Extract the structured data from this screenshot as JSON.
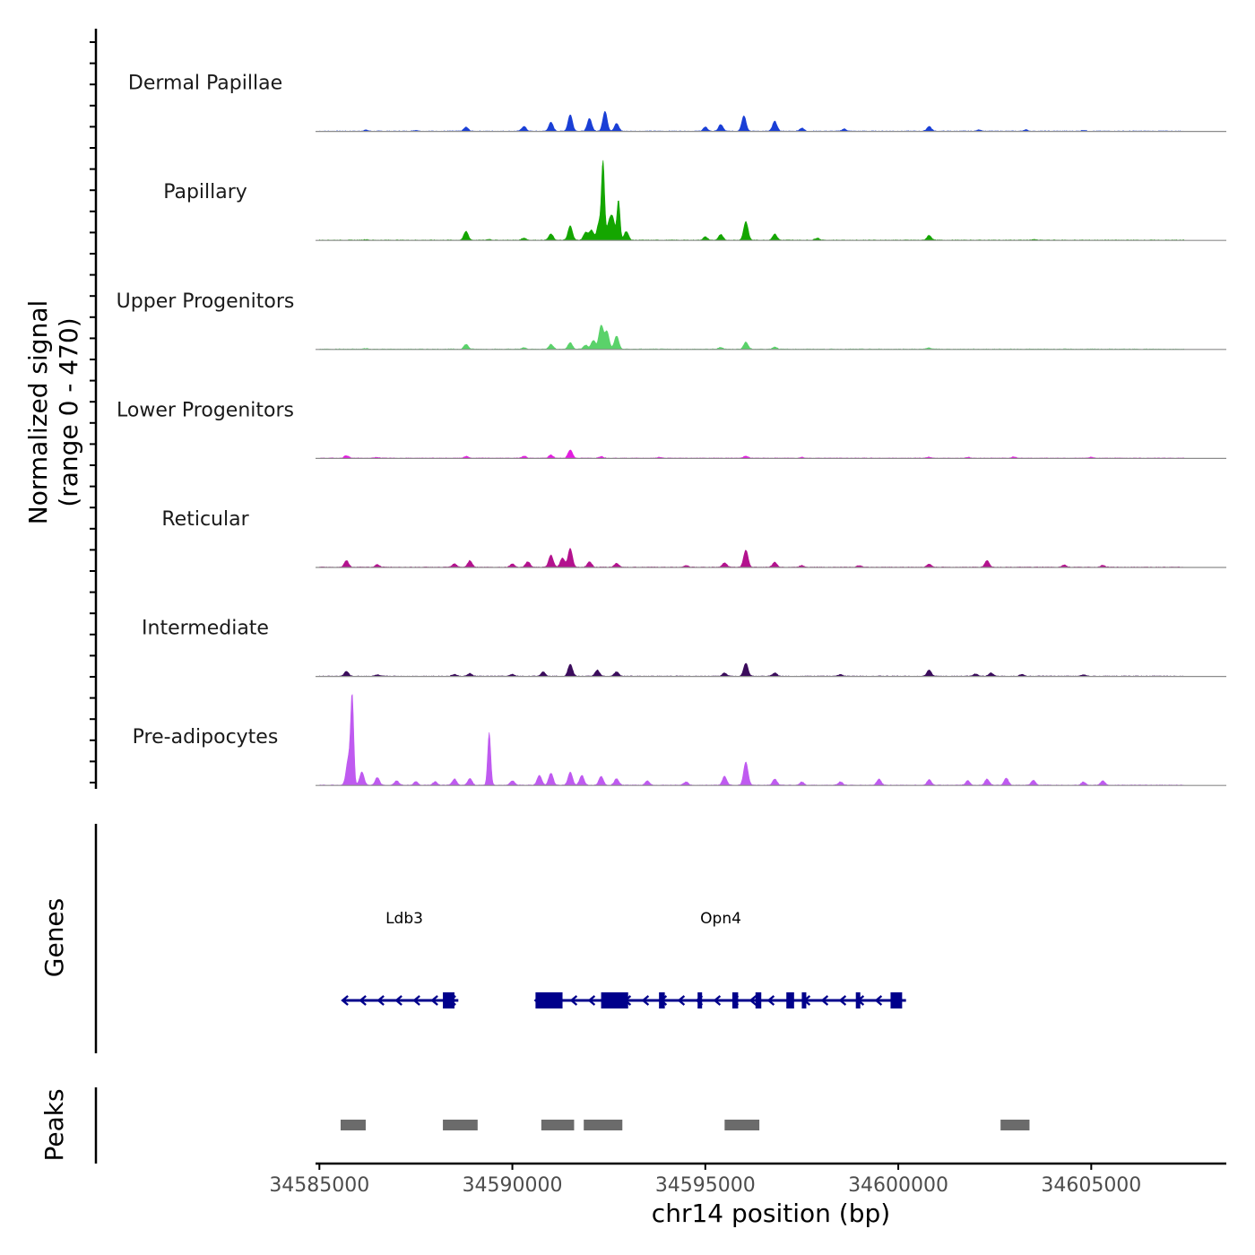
{
  "chart_data": {
    "type": "area",
    "title": "",
    "chromosome": "chr14",
    "xlabel": "chr14 position (bp)",
    "ylabel_line1": "Normalized signal",
    "ylabel_line2": "(range 0 - 470)",
    "signal_range": [
      0,
      470
    ],
    "xlim": [
      34584900,
      34608500
    ],
    "x_ticks": [
      34585000,
      34590000,
      34595000,
      34600000,
      34605000
    ],
    "x_tick_labels": [
      "34585000",
      "34590000",
      "34595000",
      "34600000",
      "34605000"
    ],
    "track_start": 34585000,
    "track_end": 34607400,
    "tracks": [
      {
        "name": "Dermal Papillae",
        "color": "#1a3fd6",
        "peaks": [
          [
            34586200,
            5
          ],
          [
            34587500,
            4
          ],
          [
            34588800,
            18
          ],
          [
            34590300,
            22
          ],
          [
            34591000,
            40
          ],
          [
            34591500,
            75
          ],
          [
            34592000,
            58
          ],
          [
            34592400,
            90
          ],
          [
            34592700,
            35
          ],
          [
            34595000,
            18
          ],
          [
            34595400,
            30
          ],
          [
            34596000,
            70
          ],
          [
            34596800,
            45
          ],
          [
            34597500,
            14
          ],
          [
            34598600,
            10
          ],
          [
            34600800,
            22
          ],
          [
            34602100,
            6
          ],
          [
            34603300,
            6
          ],
          [
            34604800,
            4
          ]
        ]
      },
      {
        "name": "Papillary",
        "color": "#14a600",
        "peaks": [
          [
            34586200,
            3
          ],
          [
            34588800,
            40
          ],
          [
            34589400,
            4
          ],
          [
            34590300,
            10
          ],
          [
            34591000,
            28
          ],
          [
            34591500,
            65
          ],
          [
            34591900,
            35
          ],
          [
            34592050,
            45
          ],
          [
            34592250,
            80
          ],
          [
            34592350,
            345
          ],
          [
            34592500,
            70
          ],
          [
            34592600,
            95
          ],
          [
            34592750,
            180
          ],
          [
            34592950,
            40
          ],
          [
            34595000,
            15
          ],
          [
            34595400,
            25
          ],
          [
            34596050,
            85
          ],
          [
            34596800,
            28
          ],
          [
            34597900,
            10
          ],
          [
            34600800,
            22
          ],
          [
            34603500,
            3
          ]
        ]
      },
      {
        "name": "Upper Progenitors",
        "color": "#5ad26a",
        "peaks": [
          [
            34586200,
            3
          ],
          [
            34588800,
            22
          ],
          [
            34590300,
            6
          ],
          [
            34591000,
            22
          ],
          [
            34591500,
            30
          ],
          [
            34591900,
            18
          ],
          [
            34592100,
            40
          ],
          [
            34592300,
            108
          ],
          [
            34592450,
            80
          ],
          [
            34592700,
            60
          ],
          [
            34595400,
            8
          ],
          [
            34596050,
            32
          ],
          [
            34596800,
            10
          ],
          [
            34600800,
            6
          ]
        ]
      },
      {
        "name": "Lower Progenitors",
        "color": "#e31ee0",
        "peaks": [
          [
            34585700,
            12
          ],
          [
            34586500,
            4
          ],
          [
            34588800,
            8
          ],
          [
            34590300,
            10
          ],
          [
            34591000,
            14
          ],
          [
            34591500,
            38
          ],
          [
            34592300,
            8
          ],
          [
            34593800,
            4
          ],
          [
            34596050,
            10
          ],
          [
            34597500,
            4
          ],
          [
            34600800,
            4
          ],
          [
            34601800,
            4
          ],
          [
            34603000,
            6
          ],
          [
            34605000,
            4
          ]
        ]
      },
      {
        "name": "Reticular",
        "color": "#b3128e",
        "peaks": [
          [
            34585700,
            30
          ],
          [
            34586500,
            12
          ],
          [
            34588500,
            15
          ],
          [
            34588900,
            30
          ],
          [
            34590000,
            15
          ],
          [
            34590400,
            25
          ],
          [
            34591000,
            55
          ],
          [
            34591300,
            42
          ],
          [
            34591500,
            85
          ],
          [
            34592000,
            25
          ],
          [
            34592700,
            18
          ],
          [
            34594500,
            8
          ],
          [
            34595500,
            20
          ],
          [
            34596050,
            78
          ],
          [
            34596800,
            22
          ],
          [
            34597500,
            8
          ],
          [
            34599000,
            8
          ],
          [
            34600800,
            14
          ],
          [
            34602300,
            30
          ],
          [
            34604300,
            10
          ],
          [
            34605300,
            8
          ]
        ]
      },
      {
        "name": "Intermediate",
        "color": "#3b0c5c",
        "peaks": [
          [
            34585700,
            22
          ],
          [
            34586500,
            6
          ],
          [
            34588500,
            8
          ],
          [
            34588900,
            12
          ],
          [
            34590000,
            8
          ],
          [
            34590800,
            20
          ],
          [
            34591500,
            55
          ],
          [
            34592200,
            28
          ],
          [
            34592700,
            20
          ],
          [
            34595500,
            15
          ],
          [
            34596050,
            60
          ],
          [
            34596800,
            15
          ],
          [
            34598500,
            8
          ],
          [
            34600800,
            28
          ],
          [
            34602000,
            10
          ],
          [
            34602400,
            15
          ],
          [
            34603200,
            8
          ],
          [
            34604800,
            6
          ]
        ]
      },
      {
        "name": "Pre-adipocytes",
        "color": "#bf5af0",
        "peaks": [
          [
            34585750,
            120
          ],
          [
            34585850,
            395
          ],
          [
            34586100,
            60
          ],
          [
            34586500,
            35
          ],
          [
            34587000,
            20
          ],
          [
            34587500,
            16
          ],
          [
            34588000,
            16
          ],
          [
            34588500,
            28
          ],
          [
            34588900,
            30
          ],
          [
            34589400,
            240
          ],
          [
            34590000,
            20
          ],
          [
            34590700,
            45
          ],
          [
            34591000,
            55
          ],
          [
            34591500,
            60
          ],
          [
            34591800,
            45
          ],
          [
            34592300,
            40
          ],
          [
            34592700,
            30
          ],
          [
            34593500,
            20
          ],
          [
            34594500,
            15
          ],
          [
            34595500,
            40
          ],
          [
            34596050,
            105
          ],
          [
            34596800,
            28
          ],
          [
            34597500,
            15
          ],
          [
            34598500,
            15
          ],
          [
            34599500,
            28
          ],
          [
            34600800,
            25
          ],
          [
            34601800,
            20
          ],
          [
            34602300,
            28
          ],
          [
            34602800,
            32
          ],
          [
            34603500,
            22
          ],
          [
            34604800,
            15
          ],
          [
            34605300,
            20
          ]
        ]
      }
    ],
    "genes": [
      {
        "name": "Ldb3",
        "strand": "-",
        "start": 34585600,
        "end": 34588600,
        "exons": [
          [
            34588200,
            34588500
          ]
        ],
        "label_pos": 34587200
      },
      {
        "name": "Opn4",
        "strand": "-",
        "start": 34590600,
        "end": 34600200,
        "exons": [
          [
            34590600,
            34591300
          ],
          [
            34592300,
            34593000
          ],
          [
            34593800,
            34593950
          ],
          [
            34594800,
            34594900
          ],
          [
            34595700,
            34595850
          ],
          [
            34596300,
            34596450
          ],
          [
            34597100,
            34597300
          ],
          [
            34597500,
            34597600
          ],
          [
            34598900,
            34599000
          ],
          [
            34599800,
            34600100
          ]
        ],
        "label_pos": 34595400
      }
    ],
    "gene_track_label": "Genes",
    "peaks_track_label": "Peaks",
    "peak_regions": [
      [
        34585550,
        34586200
      ],
      [
        34588200,
        34589100
      ],
      [
        34590750,
        34591600
      ],
      [
        34591850,
        34592850
      ],
      [
        34595500,
        34596400
      ],
      [
        34602650,
        34603400
      ]
    ],
    "colors": {
      "gene": "#00008b",
      "peak_region": "#6b6b6b",
      "baseline": "#8c8c8c"
    }
  }
}
